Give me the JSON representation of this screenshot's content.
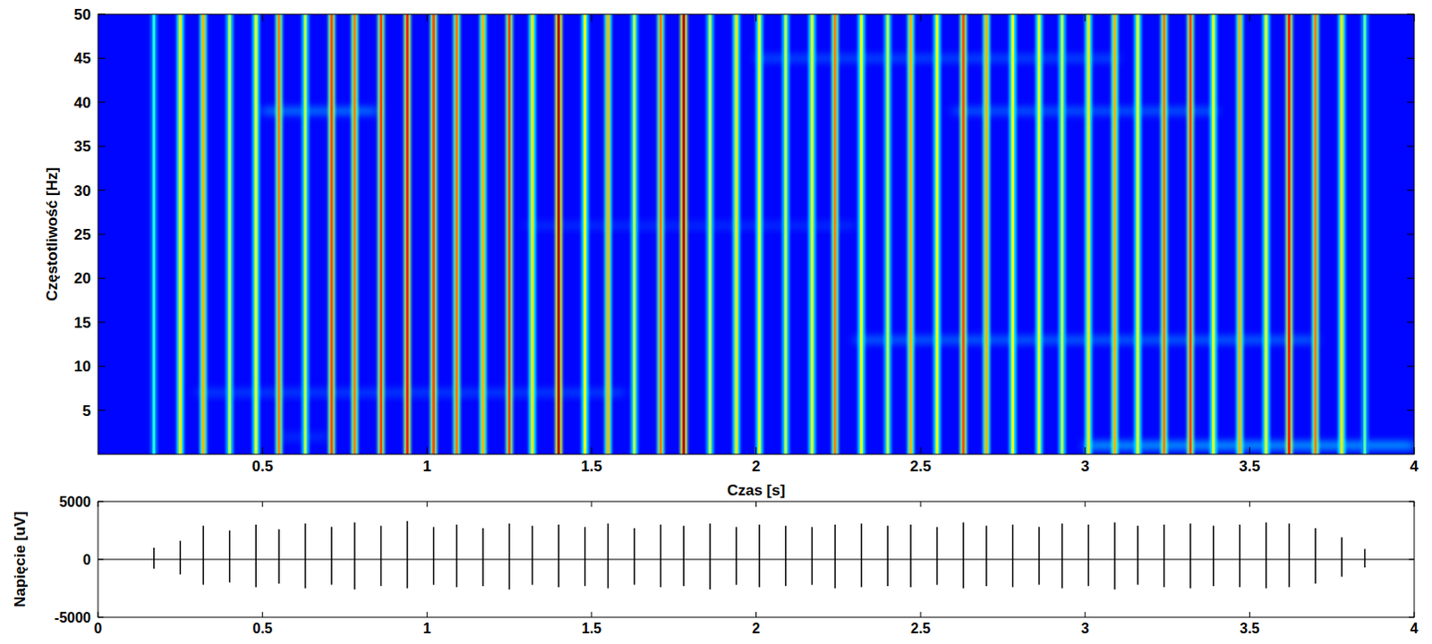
{
  "chart_data": [
    {
      "type": "heatmap",
      "ylabel": "Częstotliwość [Hz]",
      "xlabel": "Czas [s]",
      "xlim": [
        0,
        4
      ],
      "xticks": [
        0.5,
        1,
        1.5,
        2,
        2.5,
        3,
        3.5,
        4
      ],
      "ylim": [
        0,
        50
      ],
      "yticks": [
        5,
        10,
        15,
        20,
        25,
        30,
        35,
        40,
        45,
        50
      ],
      "clim": [
        0,
        1
      ],
      "background": 0.13,
      "spikes": {
        "t": [
          0.17,
          0.25,
          0.32,
          0.4,
          0.48,
          0.55,
          0.63,
          0.71,
          0.78,
          0.86,
          0.94,
          1.02,
          1.09,
          1.17,
          1.25,
          1.32,
          1.4,
          1.48,
          1.55,
          1.63,
          1.71,
          1.78,
          1.86,
          1.94,
          2.01,
          2.09,
          2.17,
          2.24,
          2.32,
          2.4,
          2.47,
          2.55,
          2.63,
          2.7,
          2.78,
          2.86,
          2.93,
          3.01,
          3.09,
          3.16,
          3.24,
          3.32,
          3.39,
          3.47,
          3.55,
          3.62,
          3.7,
          3.78,
          3.85
        ],
        "values": [
          0.4,
          0.65,
          0.7,
          0.55,
          0.6,
          0.75,
          0.55,
          0.8,
          0.75,
          0.8,
          0.85,
          0.8,
          0.75,
          0.7,
          0.8,
          0.65,
          0.95,
          0.6,
          0.7,
          0.55,
          0.75,
          0.95,
          0.55,
          0.65,
          0.6,
          0.55,
          0.6,
          0.75,
          0.6,
          0.55,
          0.7,
          0.6,
          0.8,
          0.7,
          0.6,
          0.6,
          0.55,
          0.65,
          0.7,
          0.6,
          0.75,
          0.8,
          0.6,
          0.7,
          0.6,
          0.85,
          0.75,
          0.65,
          0.45
        ]
      },
      "bands": {
        "freq": [
          39,
          7,
          26,
          45,
          39,
          13,
          1,
          2
        ],
        "t0": [
          0.5,
          0.3,
          1.3,
          2.0,
          2.6,
          2.3,
          3.0,
          0.55
        ],
        "t1": [
          0.85,
          1.6,
          2.3,
          3.1,
          3.4,
          3.7,
          4.0,
          0.7
        ],
        "values": [
          0.25,
          0.19,
          0.17,
          0.2,
          0.22,
          0.23,
          0.3,
          0.17
        ]
      }
    },
    {
      "type": "line",
      "ylabel": "Napięcie [uV]",
      "xlim": [
        0,
        4
      ],
      "xticks": [
        0,
        0.5,
        1,
        1.5,
        2,
        2.5,
        3,
        3.5,
        4
      ],
      "ylim": [
        -5000,
        5000
      ],
      "yticks": [
        -5000,
        0,
        5000
      ],
      "color": "#000000",
      "baseline": 0,
      "bursts": {
        "t": [
          0.17,
          0.25,
          0.32,
          0.4,
          0.48,
          0.55,
          0.63,
          0.71,
          0.78,
          0.86,
          0.94,
          1.02,
          1.09,
          1.17,
          1.25,
          1.32,
          1.4,
          1.48,
          1.55,
          1.63,
          1.71,
          1.78,
          1.86,
          1.94,
          2.01,
          2.09,
          2.17,
          2.24,
          2.32,
          2.4,
          2.47,
          2.55,
          2.63,
          2.7,
          2.78,
          2.86,
          2.93,
          3.01,
          3.09,
          3.16,
          3.24,
          3.32,
          3.39,
          3.47,
          3.55,
          3.62,
          3.7,
          3.78,
          3.85
        ],
        "max": [
          1000,
          1600,
          2900,
          2500,
          3000,
          2600,
          3100,
          2800,
          3200,
          2900,
          3300,
          2800,
          3000,
          2700,
          3100,
          2900,
          3000,
          2800,
          3100,
          2700,
          3000,
          2900,
          3100,
          2800,
          3000,
          2900,
          2800,
          3000,
          3100,
          2900,
          3000,
          2800,
          3200,
          2900,
          3000,
          2800,
          3100,
          3000,
          3200,
          2900,
          3000,
          3100,
          2900,
          3000,
          3200,
          3100,
          2700,
          1900,
          900
        ],
        "min": [
          -800,
          -1300,
          -2200,
          -2000,
          -2400,
          -2100,
          -2500,
          -2200,
          -2600,
          -2300,
          -2500,
          -2200,
          -2400,
          -2300,
          -2600,
          -2200,
          -2400,
          -2300,
          -2500,
          -2200,
          -2400,
          -2300,
          -2600,
          -2200,
          -2400,
          -2300,
          -2200,
          -2500,
          -2400,
          -2300,
          -2400,
          -2200,
          -2500,
          -2300,
          -2400,
          -2200,
          -2500,
          -2300,
          -2600,
          -2200,
          -2400,
          -2500,
          -2300,
          -2400,
          -2500,
          -2400,
          -2100,
          -1500,
          -700
        ]
      }
    }
  ]
}
